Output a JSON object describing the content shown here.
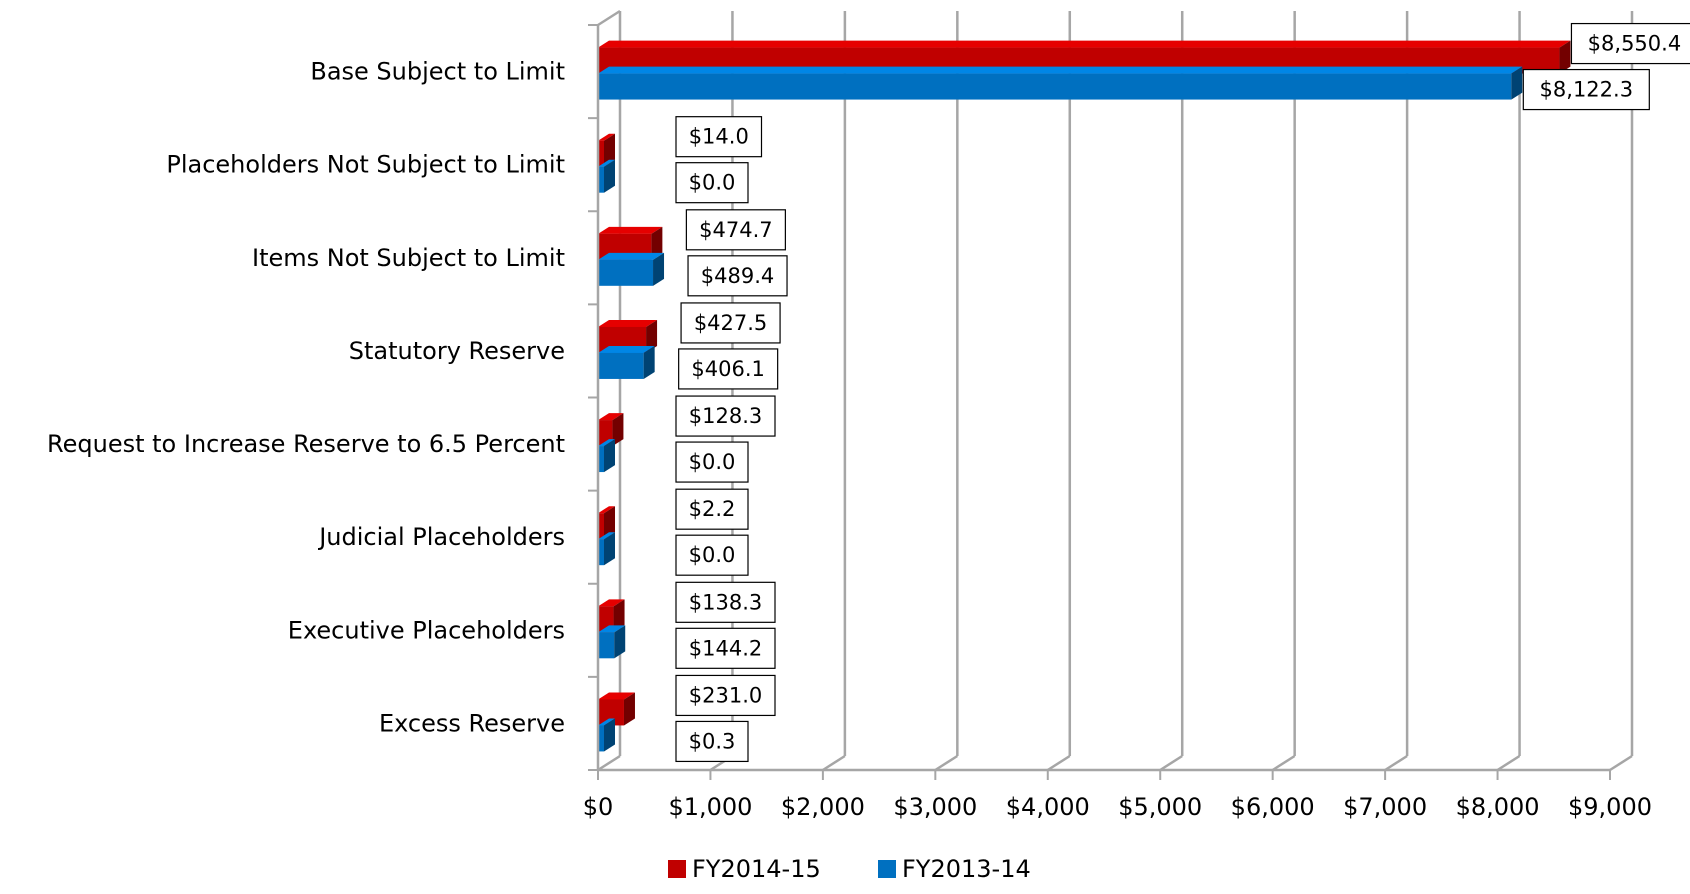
{
  "chart_data": {
    "type": "bar",
    "orientation": "horizontal",
    "style": "3d",
    "categories": [
      "Base Subject to Limit",
      "Placeholders Not Subject to Limit",
      "Items Not Subject to Limit",
      "Statutory Reserve",
      "Request to Increase Reserve to 6.5 Percent",
      "Judicial Placeholders",
      "Executive Placeholders",
      "Excess Reserve"
    ],
    "series": [
      {
        "name": "FY2014-15",
        "color": "#c00000",
        "values": [
          8550.4,
          14.0,
          474.7,
          427.5,
          128.3,
          2.2,
          138.3,
          231.0
        ],
        "labels": [
          "$8,550.4",
          "$14.0",
          "$474.7",
          "$427.5",
          "$128.3",
          "$2.2",
          "$138.3",
          "$231.0"
        ]
      },
      {
        "name": "FY2013-14",
        "color": "#0070c0",
        "values": [
          8122.3,
          0.0,
          489.4,
          406.1,
          0.0,
          0.0,
          144.2,
          0.3
        ],
        "labels": [
          "$8,122.3",
          "$0.0",
          "$489.4",
          "$406.1",
          "$0.0",
          "$0.0",
          "$144.2",
          "$0.3"
        ]
      }
    ],
    "xlim": [
      0,
      9000
    ],
    "x_ticks": [
      0,
      1000,
      2000,
      3000,
      4000,
      5000,
      6000,
      7000,
      8000,
      9000
    ],
    "x_tick_labels": [
      "$0",
      "$1,000",
      "$2,000",
      "$3,000",
      "$4,000",
      "$5,000",
      "$6,000",
      "$7,000",
      "$8,000",
      "$9,000"
    ],
    "title": "",
    "xlabel": "",
    "ylabel": "",
    "grid": true,
    "legend_position": "bottom"
  }
}
